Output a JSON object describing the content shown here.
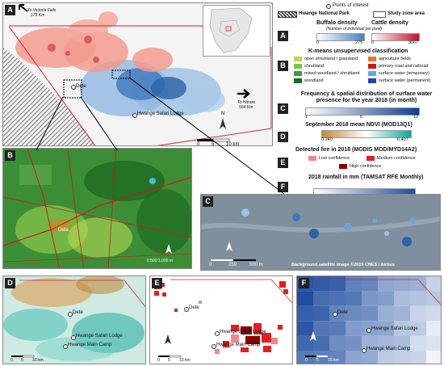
{
  "colors": {
    "buffalo": [
      "#ffffff",
      "#4a7fc1"
    ],
    "cattle": [
      "#ffffff",
      "#c0122a"
    ],
    "frequency": [
      "#ffffff",
      "#0b3f8a"
    ],
    "ndvi": [
      "#c08a3a",
      "#ffffff",
      "#12a59a"
    ],
    "rainfall": [
      "#ffffff",
      "#1f4da0"
    ]
  },
  "map": {
    "ref_paris": "To Victoria Falls",
    "ref_paris_dist": "173 Km",
    "ref_harare": "To Harare",
    "ref_harare_dist": "564 Km",
    "dete": "Dete",
    "lodge": "Hwange Safari Lodge",
    "main_camp": "Hwange Main Camp",
    "north": "N",
    "scale_0": "0",
    "scale_5": "5",
    "scale_10": "10 km"
  },
  "legend": {
    "poi": "Points of interest",
    "park": "Hwange National Park",
    "study": "Study zone area",
    "a": {
      "tag": "A",
      "buffalo_title": "Buffalo density",
      "cattle_title": "Cattle density",
      "unit": "(Number of individual per pixel)",
      "buffalo_min": "0",
      "buffalo_max": "275",
      "cattle_min": "0",
      "cattle_max": "3067"
    },
    "b": {
      "tag": "B",
      "title": "K-means unsupervised classification",
      "classes": [
        {
          "label": "open shrubland / grassland",
          "color": "#b5d855"
        },
        {
          "label": "agriculture fields",
          "color": "#e07a2a"
        },
        {
          "label": "shrubland",
          "color": "#7fc24a"
        },
        {
          "label": "primary road and railroad",
          "color": "#cc1a1a"
        },
        {
          "label": "mixed woodland / shrubland",
          "color": "#3f9a3a"
        },
        {
          "label": "surface water (temporary)",
          "color": "#4fb3e0"
        },
        {
          "label": "woodland",
          "color": "#1d6b22"
        },
        {
          "label": "surface water (permanent)",
          "color": "#2b3fa8"
        }
      ]
    },
    "c": {
      "tag": "C",
      "title": "Frequency & spatial distribution of surface water presence for the year 2018 (in month)",
      "min": "1",
      "mid": "6",
      "max": "12"
    },
    "d": {
      "tag": "D",
      "title": "September 2018 mean NDVI (MOD13Q1)",
      "min": "0.240",
      "max": "0.407"
    },
    "e": {
      "tag": "E",
      "title": "Detected fire in 2018 (MODIS MOD/MYD14A2)",
      "low": "Low confidence",
      "medium": "Medium confidence",
      "high": "High confidence",
      "low_color": "#f08a8a",
      "medium_color": "#e02020",
      "high_color": "#8b0000"
    },
    "f": {
      "tag": "F",
      "title": "2018 rainfall in mm (TAMSAT RFE Monthly)",
      "min": "565",
      "max": "679"
    }
  },
  "panels": {
    "a": "A",
    "b": "B",
    "c": "C",
    "d": "D",
    "e": "E",
    "f": "F",
    "c_credit": "Background satellite image ©2019 CNES / Airbus",
    "c_scale_0": "0",
    "c_scale_250": "250",
    "c_scale_500": "500 m",
    "b_scale": "0  500 1,000 m"
  }
}
